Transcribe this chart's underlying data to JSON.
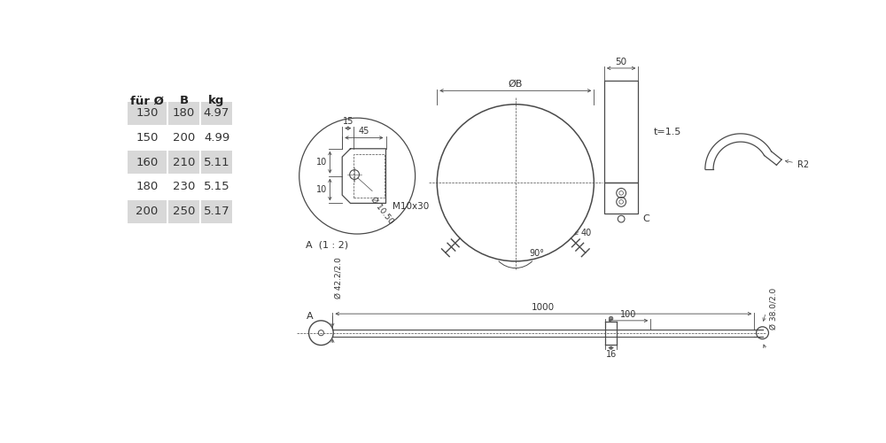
{
  "table_headers": [
    "für Ø",
    "B",
    "kg"
  ],
  "table_rows": [
    [
      "130",
      "180",
      "4.97"
    ],
    [
      "150",
      "200",
      "4.99"
    ],
    [
      "160",
      "210",
      "5.11"
    ],
    [
      "180",
      "230",
      "5.15"
    ],
    [
      "200",
      "250",
      "5.17"
    ]
  ],
  "table_shaded_rows": [
    0,
    2,
    4
  ],
  "bg_color": "#ffffff",
  "line_color": "#4a4a4a",
  "dim_color": "#4a4a4a",
  "table_bg": "#d8d8d8",
  "text_color": "#333333"
}
